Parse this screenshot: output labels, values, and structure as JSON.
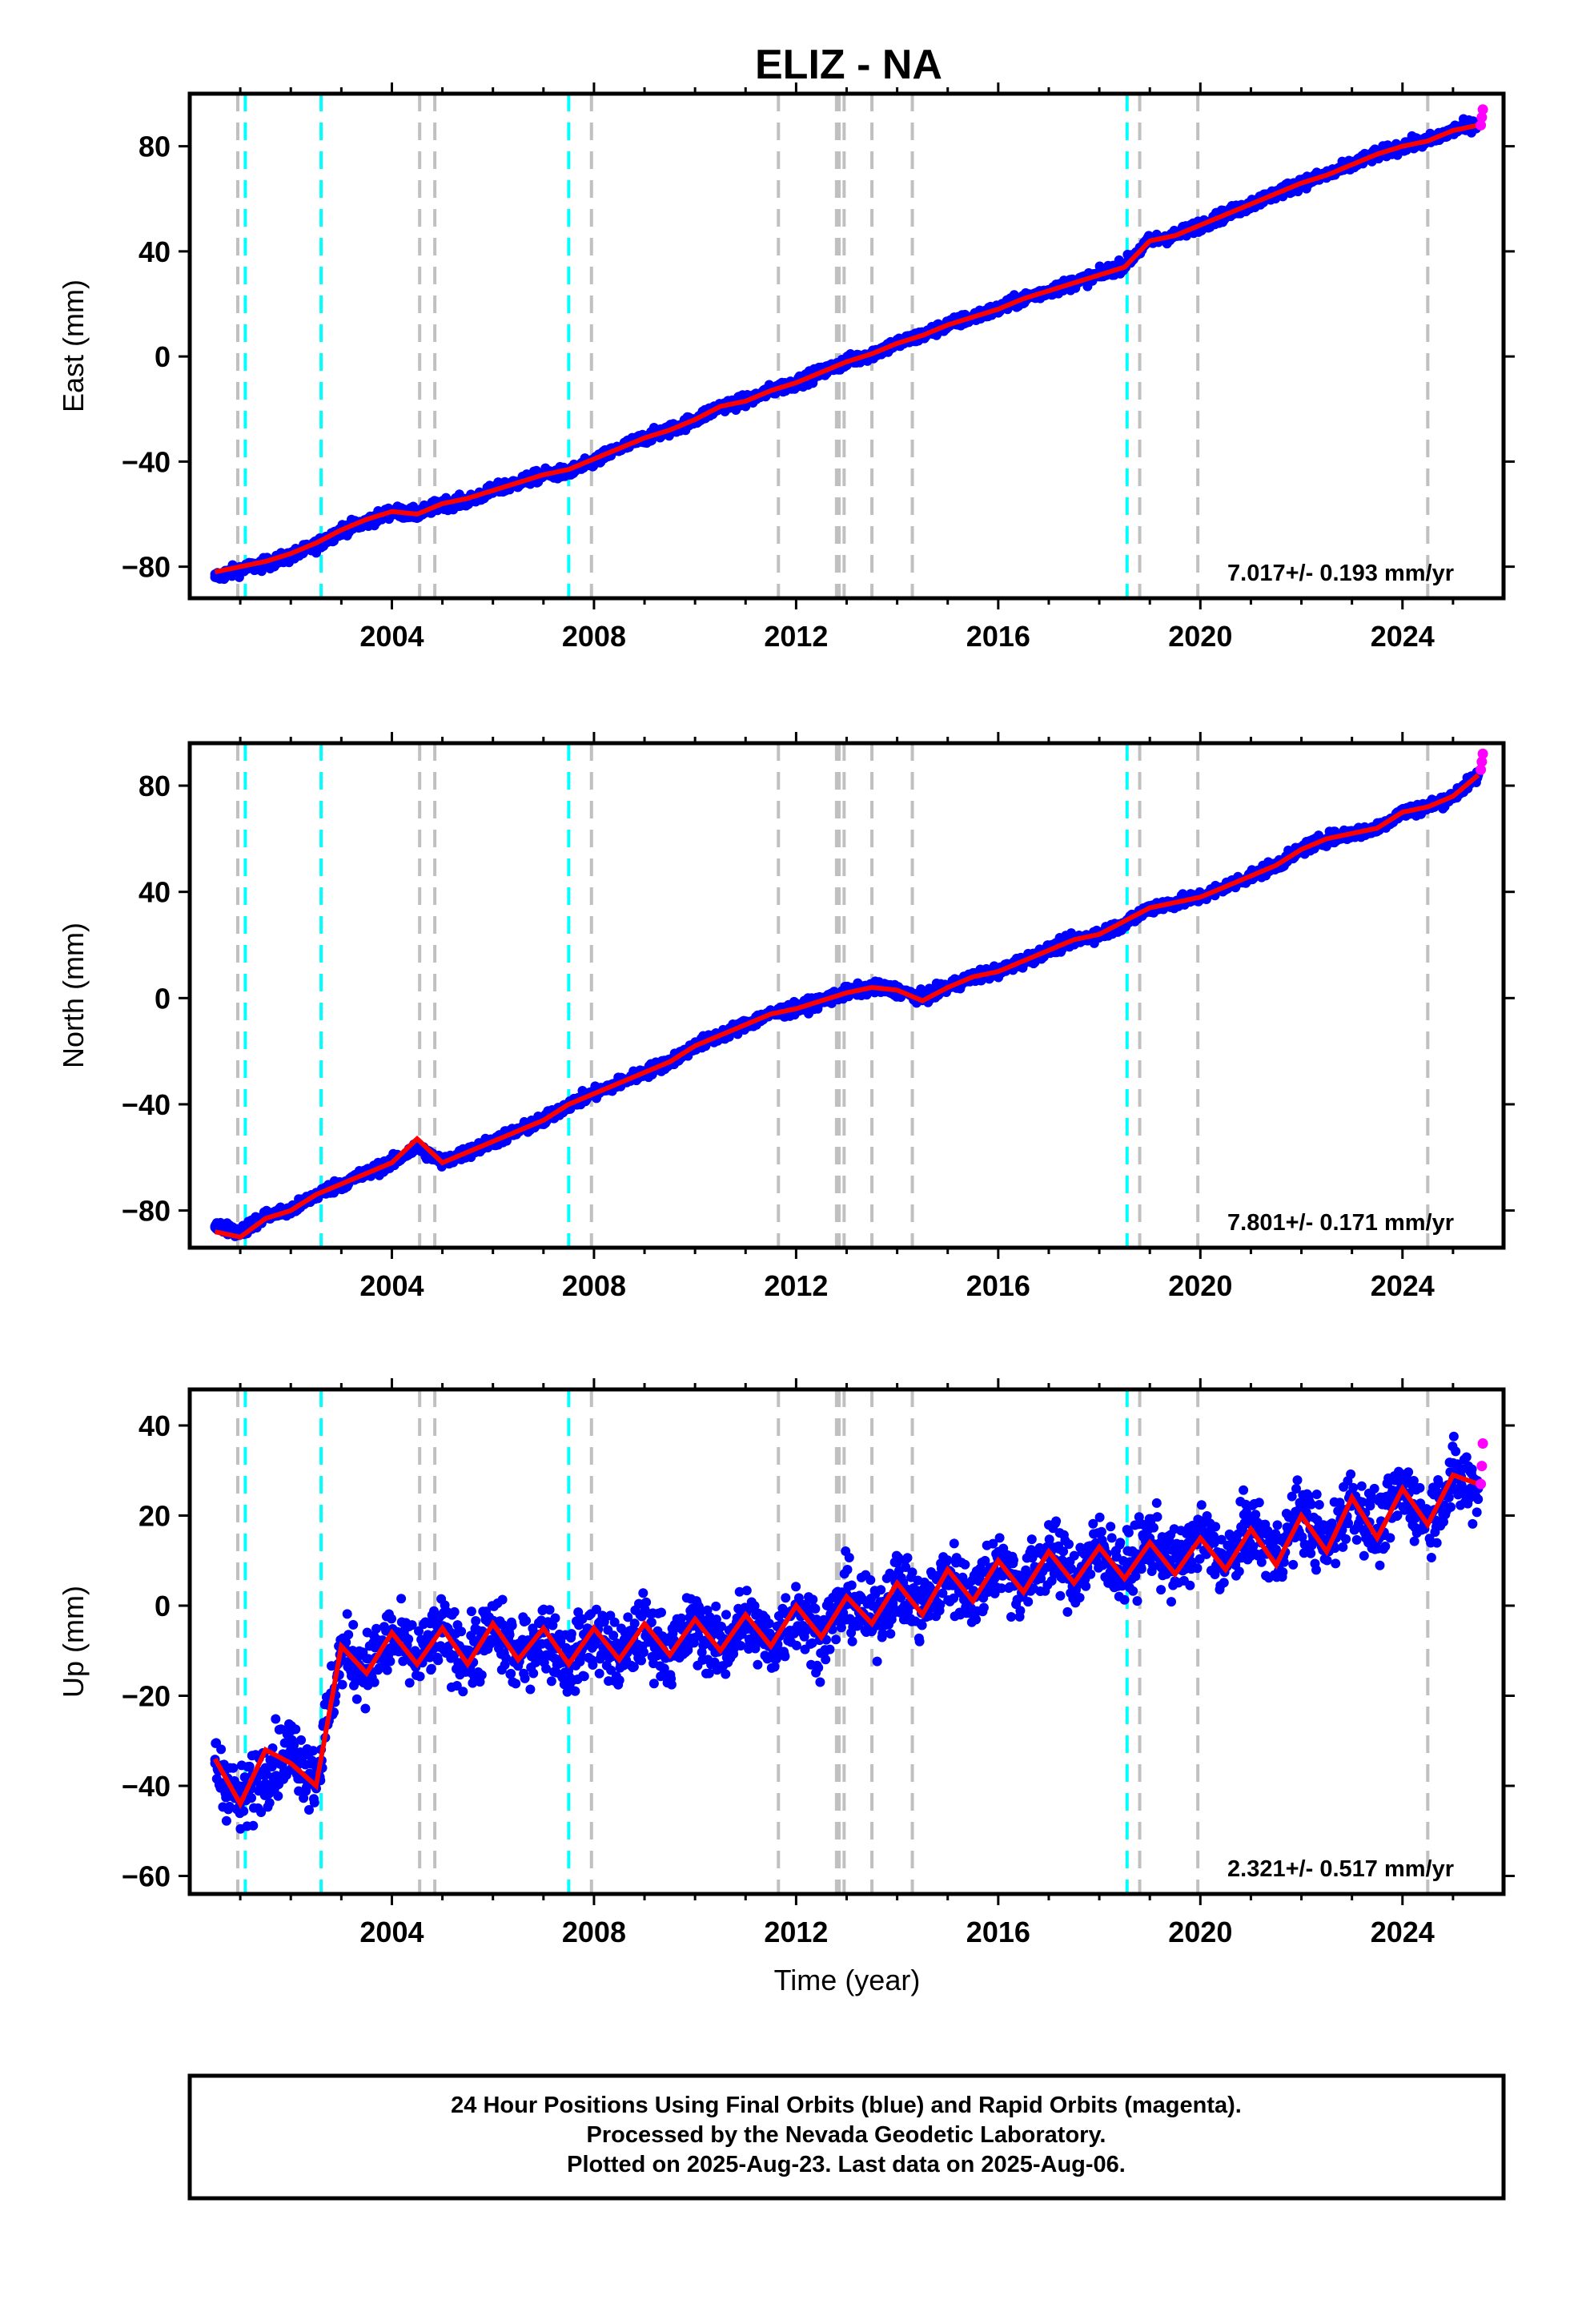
{
  "title": "ELIZ - NA",
  "footer": {
    "line1": "24 Hour Positions Using Final Orbits (blue) and Rapid Orbits (magenta).",
    "line2": "Processed by the Nevada Geodetic Laboratory.",
    "line3": "Plotted on 2025-Aug-23. Last data on 2025-Aug-06."
  },
  "colors": {
    "final_orbits": "#0000ff",
    "rapid_orbits": "#ff00ff",
    "model_fit": "#ff0000",
    "equipment_change_lines": "#c0c0c0",
    "earthquake_lines": "#00ffff"
  },
  "events": {
    "gray_dashed_years": [
      2000.95,
      2004.55,
      2004.85,
      2007.95,
      2011.65,
      2012.8,
      2012.85,
      2012.95,
      2013.5,
      2014.3,
      2018.8,
      2019.95,
      2024.5
    ],
    "cyan_dashed_years": [
      2001.1,
      2002.6,
      2007.5,
      2018.55
    ]
  },
  "chart_data": [
    {
      "type": "scatter",
      "ylabel": "East (mm)",
      "xlabel": "",
      "xlim": [
        2000.0,
        2026.0
      ],
      "ylim": [
        -92,
        100
      ],
      "xticks": [
        2004,
        2008,
        2012,
        2016,
        2020,
        2024
      ],
      "yticks": [
        -80,
        -40,
        0,
        40,
        80
      ],
      "rate_label": "7.017+/- 0.193 mm/yr",
      "series": [
        {
          "name": "Final Orbits",
          "x": [
            2000.5,
            2001.0,
            2001.5,
            2002.0,
            2002.5,
            2003.0,
            2003.5,
            2004.0,
            2004.5,
            2005.0,
            2005.5,
            2006.0,
            2006.5,
            2007.0,
            2007.5,
            2008.0,
            2008.5,
            2009.0,
            2009.5,
            2010.0,
            2010.5,
            2011.0,
            2011.5,
            2012.0,
            2012.5,
            2013.0,
            2013.5,
            2014.0,
            2014.5,
            2015.0,
            2015.5,
            2016.0,
            2016.5,
            2017.0,
            2017.5,
            2018.0,
            2018.5,
            2019.0,
            2019.5,
            2020.0,
            2020.5,
            2021.0,
            2021.5,
            2022.0,
            2022.5,
            2023.0,
            2023.5,
            2024.0,
            2024.5,
            2025.0,
            2025.5
          ],
          "y": [
            -84,
            -81,
            -79,
            -76,
            -72,
            -66,
            -63,
            -59,
            -60,
            -56,
            -55,
            -51,
            -48,
            -45,
            -44,
            -40,
            -35,
            -31,
            -28,
            -24,
            -19,
            -17,
            -13,
            -10,
            -6,
            -2,
            1,
            5,
            8,
            12,
            15,
            18,
            22,
            25,
            28,
            31,
            35,
            44,
            46,
            50,
            54,
            58,
            62,
            66,
            69,
            73,
            77,
            80,
            82,
            86,
            89
          ]
        },
        {
          "name": "Rapid Orbits",
          "x": [
            2025.55,
            2025.57,
            2025.59
          ],
          "y": [
            88,
            91,
            94
          ]
        },
        {
          "name": "Model",
          "x": [
            2000.5,
            2001.0,
            2001.5,
            2002.0,
            2002.5,
            2003.0,
            2003.5,
            2004.0,
            2004.5,
            2005.0,
            2005.5,
            2006.0,
            2006.5,
            2007.0,
            2007.5,
            2008.0,
            2008.5,
            2009.0,
            2009.5,
            2010.0,
            2010.5,
            2011.0,
            2011.5,
            2012.0,
            2012.5,
            2013.0,
            2013.5,
            2014.0,
            2014.5,
            2015.0,
            2015.5,
            2016.0,
            2016.5,
            2017.0,
            2017.5,
            2018.0,
            2018.5,
            2019.0,
            2019.5,
            2020.0,
            2020.5,
            2021.0,
            2021.5,
            2022.0,
            2022.5,
            2023.0,
            2023.5,
            2024.0,
            2024.5,
            2025.0,
            2025.5
          ],
          "y": [
            -82,
            -80,
            -78,
            -75,
            -71,
            -66,
            -62,
            -59,
            -60,
            -56,
            -54,
            -51,
            -48,
            -45,
            -43,
            -39,
            -35,
            -31,
            -28,
            -24,
            -19,
            -17,
            -13,
            -10,
            -6,
            -2,
            1,
            5,
            8,
            12,
            15,
            18,
            22,
            25,
            28,
            31,
            34,
            44,
            46,
            50,
            54,
            58,
            62,
            66,
            69,
            73,
            77,
            80,
            82,
            86,
            88
          ]
        }
      ]
    },
    {
      "type": "scatter",
      "ylabel": "North (mm)",
      "xlabel": "",
      "xlim": [
        2000.0,
        2026.0
      ],
      "ylim": [
        -94,
        96
      ],
      "xticks": [
        2004,
        2008,
        2012,
        2016,
        2020,
        2024
      ],
      "yticks": [
        -80,
        -40,
        0,
        40,
        80
      ],
      "rate_label": "7.801+/- 0.171 mm/yr",
      "series": [
        {
          "name": "Final Orbits",
          "x": [
            2000.5,
            2001.0,
            2001.5,
            2002.0,
            2002.5,
            2003.0,
            2003.5,
            2004.0,
            2004.5,
            2005.0,
            2005.5,
            2006.0,
            2006.5,
            2007.0,
            2007.5,
            2008.0,
            2008.5,
            2009.0,
            2009.5,
            2010.0,
            2010.5,
            2011.0,
            2011.5,
            2012.0,
            2012.5,
            2013.0,
            2013.5,
            2014.0,
            2014.5,
            2015.0,
            2015.5,
            2016.0,
            2016.5,
            2017.0,
            2017.5,
            2018.0,
            2018.5,
            2019.0,
            2019.5,
            2020.0,
            2020.5,
            2021.0,
            2021.5,
            2022.0,
            2022.5,
            2023.0,
            2023.5,
            2024.0,
            2024.5,
            2025.0,
            2025.5
          ],
          "y": [
            -86,
            -88,
            -82,
            -80,
            -74,
            -70,
            -66,
            -62,
            -56,
            -62,
            -58,
            -54,
            -50,
            -46,
            -40,
            -36,
            -32,
            -28,
            -24,
            -18,
            -14,
            -10,
            -6,
            -4,
            -1,
            2,
            4,
            3,
            0,
            4,
            8,
            10,
            14,
            18,
            22,
            24,
            28,
            34,
            36,
            38,
            42,
            46,
            50,
            56,
            60,
            62,
            64,
            70,
            72,
            76,
            84
          ]
        },
        {
          "name": "Rapid Orbits",
          "x": [
            2025.55,
            2025.57,
            2025.59
          ],
          "y": [
            86,
            89,
            92
          ]
        },
        {
          "name": "Model",
          "x": [
            2000.5,
            2001.0,
            2001.5,
            2002.0,
            2002.5,
            2003.0,
            2003.5,
            2004.0,
            2004.5,
            2005.0,
            2005.5,
            2006.0,
            2006.5,
            2007.0,
            2007.5,
            2008.0,
            2008.5,
            2009.0,
            2009.5,
            2010.0,
            2010.5,
            2011.0,
            2011.5,
            2012.0,
            2012.5,
            2013.0,
            2013.5,
            2014.0,
            2014.5,
            2015.0,
            2015.5,
            2016.0,
            2016.5,
            2017.0,
            2017.5,
            2018.0,
            2018.5,
            2019.0,
            2019.5,
            2020.0,
            2020.5,
            2021.0,
            2021.5,
            2022.0,
            2022.5,
            2023.0,
            2023.5,
            2024.0,
            2024.5,
            2025.0,
            2025.5
          ],
          "y": [
            -88,
            -90,
            -83,
            -80,
            -74,
            -70,
            -66,
            -62,
            -53,
            -62,
            -58,
            -54,
            -50,
            -46,
            -40,
            -36,
            -32,
            -28,
            -24,
            -18,
            -14,
            -10,
            -6,
            -4,
            -1,
            2,
            4,
            3,
            -1,
            4,
            8,
            10,
            14,
            18,
            22,
            24,
            29,
            34,
            36,
            38,
            42,
            46,
            50,
            56,
            60,
            62,
            64,
            70,
            72,
            76,
            84
          ]
        }
      ]
    },
    {
      "type": "scatter",
      "ylabel": "Up (mm)",
      "xlabel": "Time (year)",
      "xlim": [
        2000.0,
        2026.0
      ],
      "ylim": [
        -64,
        48
      ],
      "xticks": [
        2004,
        2008,
        2012,
        2016,
        2020,
        2024
      ],
      "yticks": [
        -60,
        -40,
        -20,
        0,
        20,
        40
      ],
      "rate_label": "2.321+/- 0.517 mm/yr",
      "series": [
        {
          "name": "Final Orbits",
          "x": [
            2000.5,
            2001.0,
            2001.5,
            2002.0,
            2002.5,
            2003.0,
            2003.5,
            2004.0,
            2004.5,
            2005.0,
            2005.5,
            2006.0,
            2006.5,
            2007.0,
            2007.5,
            2008.0,
            2008.5,
            2009.0,
            2009.5,
            2010.0,
            2010.5,
            2011.0,
            2011.5,
            2012.0,
            2012.5,
            2013.0,
            2013.5,
            2014.0,
            2014.5,
            2015.0,
            2015.5,
            2016.0,
            2016.5,
            2017.0,
            2017.5,
            2018.0,
            2018.5,
            2019.0,
            2019.5,
            2020.0,
            2020.5,
            2021.0,
            2021.5,
            2022.0,
            2022.5,
            2023.0,
            2023.5,
            2024.0,
            2024.5,
            2025.0,
            2025.5
          ],
          "y": [
            -35,
            -44,
            -36,
            -32,
            -38,
            -10,
            -14,
            -7,
            -12,
            -6,
            -12,
            -5,
            -12,
            -6,
            -13,
            -6,
            -12,
            -5,
            -11,
            -4,
            -10,
            -3,
            -9,
            -1,
            -7,
            2,
            -4,
            5,
            -1,
            7,
            2,
            10,
            4,
            12,
            6,
            13,
            7,
            15,
            8,
            16,
            9,
            18,
            11,
            21,
            13,
            24,
            16,
            26,
            19,
            28,
            26
          ]
        },
        {
          "name": "Rapid Orbits",
          "x": [
            2025.55,
            2025.57,
            2025.59
          ],
          "y": [
            27,
            31,
            36
          ]
        },
        {
          "name": "Model",
          "x": [
            2000.5,
            2001.0,
            2001.5,
            2002.0,
            2002.5,
            2003.0,
            2003.5,
            2004.0,
            2004.5,
            2005.0,
            2005.5,
            2006.0,
            2006.5,
            2007.0,
            2007.5,
            2008.0,
            2008.5,
            2009.0,
            2009.5,
            2010.0,
            2010.5,
            2011.0,
            2011.5,
            2012.0,
            2012.5,
            2013.0,
            2013.5,
            2014.0,
            2014.5,
            2015.0,
            2015.5,
            2016.0,
            2016.5,
            2017.0,
            2017.5,
            2018.0,
            2018.5,
            2019.0,
            2019.5,
            2020.0,
            2020.5,
            2021.0,
            2021.5,
            2022.0,
            2022.5,
            2023.0,
            2023.5,
            2024.0,
            2024.5,
            2025.0,
            2025.5
          ],
          "y": [
            -34,
            -44,
            -32,
            -35,
            -40,
            -9,
            -15,
            -6,
            -13,
            -5,
            -13,
            -4,
            -12,
            -5,
            -13,
            -5,
            -12,
            -4,
            -11,
            -3,
            -10,
            -2,
            -9,
            0,
            -7,
            2,
            -4,
            5,
            -2,
            8,
            1,
            10,
            3,
            12,
            5,
            13,
            6,
            14,
            7,
            15,
            8,
            17,
            9,
            20,
            12,
            24,
            15,
            26,
            18,
            29,
            27
          ]
        }
      ]
    }
  ]
}
